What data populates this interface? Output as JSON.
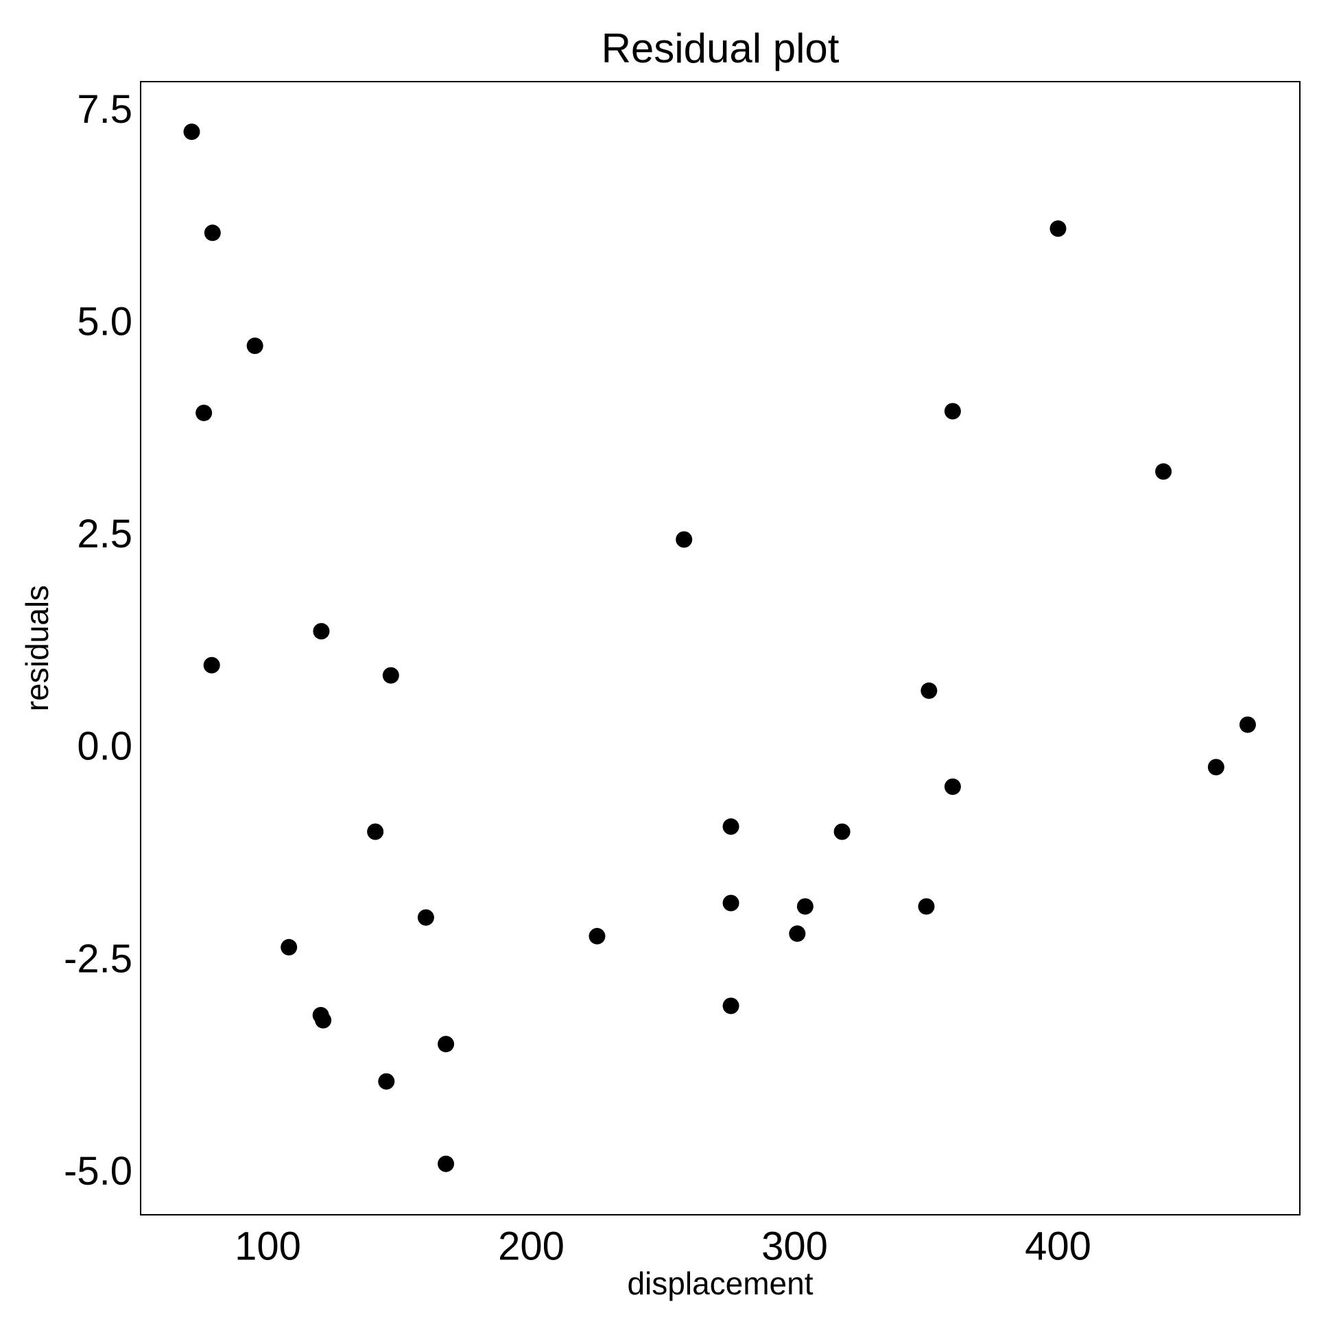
{
  "chart_data": {
    "type": "scatter",
    "title": "Residual plot",
    "x_label": "displacement",
    "y_label": "residuals",
    "x": [
      71.1,
      79.0,
      95.1,
      75.7,
      78.7,
      120.3,
      146.7,
      140.8,
      108,
      120.1,
      121,
      160,
      167.6,
      145,
      167.6,
      225,
      258,
      275.8,
      275.8,
      275.8,
      301,
      304,
      318,
      350,
      351,
      360,
      360,
      400,
      440,
      460,
      472
    ],
    "values": [
      7.27,
      6.08,
      4.75,
      3.96,
      0.99,
      1.39,
      0.87,
      -0.97,
      -2.33,
      -3.13,
      -3.19,
      -1.98,
      -3.47,
      -3.91,
      -4.88,
      -2.2,
      2.47,
      -0.91,
      -1.81,
      -3.02,
      -2.17,
      -1.85,
      -0.97,
      -1.85,
      0.69,
      -0.44,
      3.98,
      6.13,
      3.27,
      -0.21,
      0.29
    ],
    "color": "#000000",
    "xlim": [
      51.7,
      491.8
    ],
    "xticks": [
      100,
      200,
      300,
      400
    ],
    "ylim": [
      -5.48,
      7.86
    ],
    "yticks": [
      {
        "value": -5.0,
        "label": "-5.0"
      },
      -2.5,
      {
        "value": 0.0,
        "label": "0.0"
      },
      2.5,
      {
        "value": 5.0,
        "label": "5.0"
      },
      7.5
    ],
    "grid": false
  }
}
